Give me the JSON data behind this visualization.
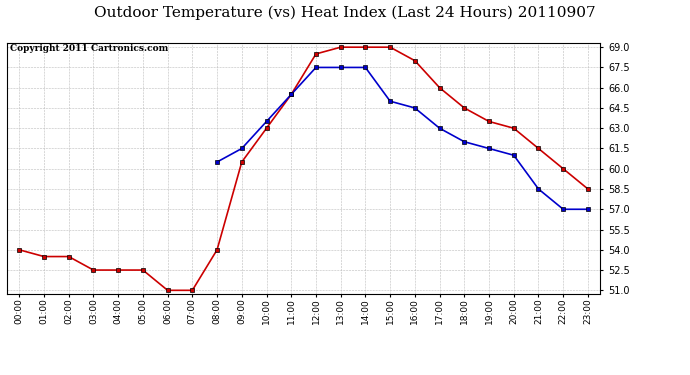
{
  "title": "Outdoor Temperature (vs) Heat Index (Last 24 Hours) 20110907",
  "copyright_text": "Copyright 2011 Cartronics.com",
  "hours": [
    "00:00",
    "01:00",
    "02:00",
    "03:00",
    "04:00",
    "05:00",
    "06:00",
    "07:00",
    "08:00",
    "09:00",
    "10:00",
    "11:00",
    "12:00",
    "13:00",
    "14:00",
    "15:00",
    "16:00",
    "17:00",
    "18:00",
    "19:00",
    "20:00",
    "21:00",
    "22:00",
    "23:00"
  ],
  "outdoor_temp": [
    54.0,
    53.5,
    53.5,
    52.5,
    52.5,
    52.5,
    51.0,
    51.0,
    54.0,
    60.5,
    63.0,
    65.5,
    68.5,
    69.0,
    69.0,
    69.0,
    68.0,
    66.0,
    64.5,
    63.5,
    63.0,
    61.5,
    60.0,
    58.5
  ],
  "heat_index": [
    null,
    null,
    null,
    null,
    null,
    null,
    null,
    null,
    60.5,
    61.5,
    63.5,
    65.5,
    67.5,
    67.5,
    67.5,
    65.0,
    64.5,
    63.0,
    62.0,
    61.5,
    61.0,
    58.5,
    57.0,
    57.0
  ],
  "temp_color": "#cc0000",
  "heat_color": "#0000cc",
  "ylim_min": 51.0,
  "ylim_max": 69.0,
  "yticks": [
    51.0,
    52.5,
    54.0,
    55.5,
    57.0,
    58.5,
    60.0,
    61.5,
    63.0,
    64.5,
    66.0,
    67.5,
    69.0
  ],
  "grid_color": "#bbbbbb",
  "background_color": "#ffffff",
  "marker": "s",
  "markersize": 3,
  "linewidth": 1.2,
  "title_fontsize": 11,
  "copyright_fontsize": 6.5
}
